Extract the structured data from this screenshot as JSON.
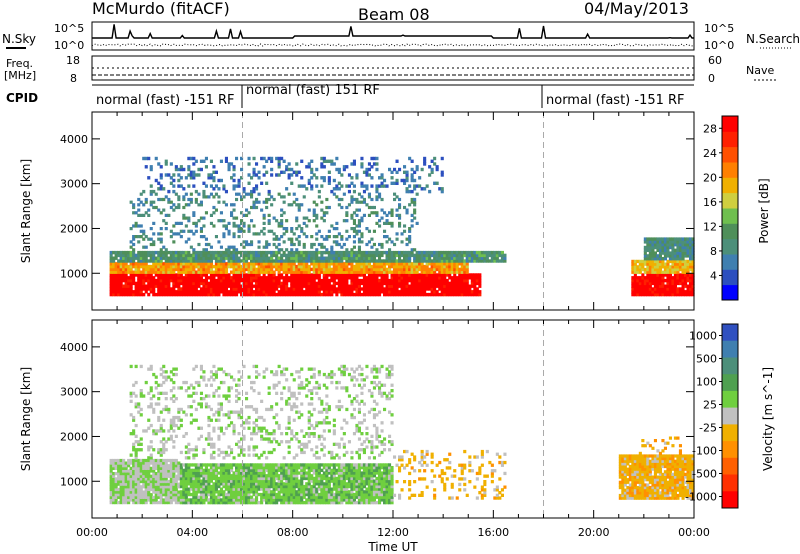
{
  "header": {
    "station": "McMurdo (fitACF)",
    "beam": "Beam 08",
    "date": "04/May/2013"
  },
  "top_panels": {
    "nsky_label": "N.Sky",
    "nsearch_label": "N.Search",
    "freq_label_1": "Freq.",
    "freq_label_2": "[MHz]",
    "freq_ticks": [
      "18",
      "8"
    ],
    "nave_label": "Nave",
    "nave_ticks": [
      "60",
      "0"
    ],
    "noise_ticks": [
      "10^5",
      "10^0"
    ],
    "cpid_label": "CPID",
    "cpid_segments": [
      {
        "text": "normal (fast) -151 RF",
        "start_hour": 0,
        "end_hour": 6
      },
      {
        "text": "normal (fast) 151 RF",
        "start_hour": 6,
        "end_hour": 18
      },
      {
        "text": "normal (fast) -151 RF",
        "start_hour": 18,
        "end_hour": 24
      }
    ]
  },
  "colors": {
    "power": [
      "#0000ff",
      "#2c4fbf",
      "#3f7fb0",
      "#4c8f7a",
      "#4f8f5a",
      "#6fbf4f",
      "#cfcf3f",
      "#f0b000",
      "#ff8000",
      "#ff5000",
      "#ff2000",
      "#ff0000"
    ],
    "velocity": [
      "#3050c0",
      "#3f7fb0",
      "#4c8f7a",
      "#4fa050",
      "#6fcf3f",
      "#c0c0c0",
      "#f0b000",
      "#ff9000",
      "#ff6000",
      "#ff3000",
      "#ff0000"
    ]
  },
  "chart_data": [
    {
      "type": "heatmap",
      "title": "",
      "xlabel": "Time UT",
      "ylabel": "Slant Range [km]",
      "xlim": [
        0,
        24
      ],
      "ylim": [
        180,
        4600
      ],
      "x_ticks": [
        "00:00",
        "04:00",
        "08:00",
        "12:00",
        "16:00",
        "20:00",
        "00:00"
      ],
      "y_ticks": [
        1000,
        2000,
        3000,
        4000
      ],
      "colorbar_label": "Power [dB]",
      "colorbar_ticks": [
        4,
        8,
        12,
        16,
        20,
        24,
        28
      ],
      "colorbar_range": [
        0,
        30
      ],
      "dashed_verticals_hours": [
        6,
        18
      ],
      "regions": [
        {
          "t0": 0.7,
          "t1": 15.5,
          "r0": 500,
          "r1": 1000,
          "level": 30
        },
        {
          "t0": 0.7,
          "t1": 15.0,
          "r0": 1000,
          "r1": 1250,
          "level": 20
        },
        {
          "t0": 0.7,
          "t1": 16.5,
          "r0": 1250,
          "r1": 1500,
          "level": 10
        },
        {
          "t0": 21.5,
          "t1": 24.0,
          "r0": 500,
          "r1": 1000,
          "level": 29
        },
        {
          "t0": 21.5,
          "t1": 24.0,
          "r0": 1000,
          "r1": 1300,
          "level": 18
        },
        {
          "t0": 22.0,
          "t1": 24.0,
          "r0": 1300,
          "r1": 1800,
          "level": 9
        },
        {
          "t0": 1.5,
          "t1": 13.0,
          "r0": 1500,
          "r1": 2800,
          "level": 8
        },
        {
          "t0": 2.0,
          "t1": 14.0,
          "r0": 2800,
          "r1": 3600,
          "level": 6
        }
      ]
    },
    {
      "type": "heatmap",
      "title": "",
      "xlabel": "Time UT",
      "ylabel": "Slant Range [km]",
      "xlim": [
        0,
        24
      ],
      "ylim": [
        180,
        4600
      ],
      "x_ticks": [
        "00:00",
        "04:00",
        "08:00",
        "12:00",
        "16:00",
        "20:00",
        "00:00"
      ],
      "y_ticks": [
        1000,
        2000,
        3000,
        4000
      ],
      "colorbar_label": "Velocity [m s^-1]",
      "colorbar_ticks": [
        1000,
        500,
        100,
        25,
        -25,
        -100,
        -500,
        -1000
      ],
      "colorbar_range": [
        -1000,
        1000
      ],
      "dashed_verticals_hours": [
        6,
        18
      ],
      "regions": [
        {
          "t0": 0.7,
          "t1": 3.5,
          "r0": 500,
          "r1": 1500,
          "level": 80
        },
        {
          "t0": 3.5,
          "t1": 12.0,
          "r0": 500,
          "r1": 1400,
          "level": 200
        },
        {
          "t0": 12.0,
          "t1": 16.5,
          "r0": 600,
          "r1": 1700,
          "level": -150
        },
        {
          "t0": 21.0,
          "t1": 24.0,
          "r0": 600,
          "r1": 1600,
          "level": -200
        },
        {
          "t0": 21.8,
          "t1": 23.5,
          "r0": 1600,
          "r1": 2000,
          "level": -200
        },
        {
          "t0": 1.5,
          "t1": 12.0,
          "r0": 1500,
          "r1": 3600,
          "level": 60
        }
      ]
    }
  ]
}
